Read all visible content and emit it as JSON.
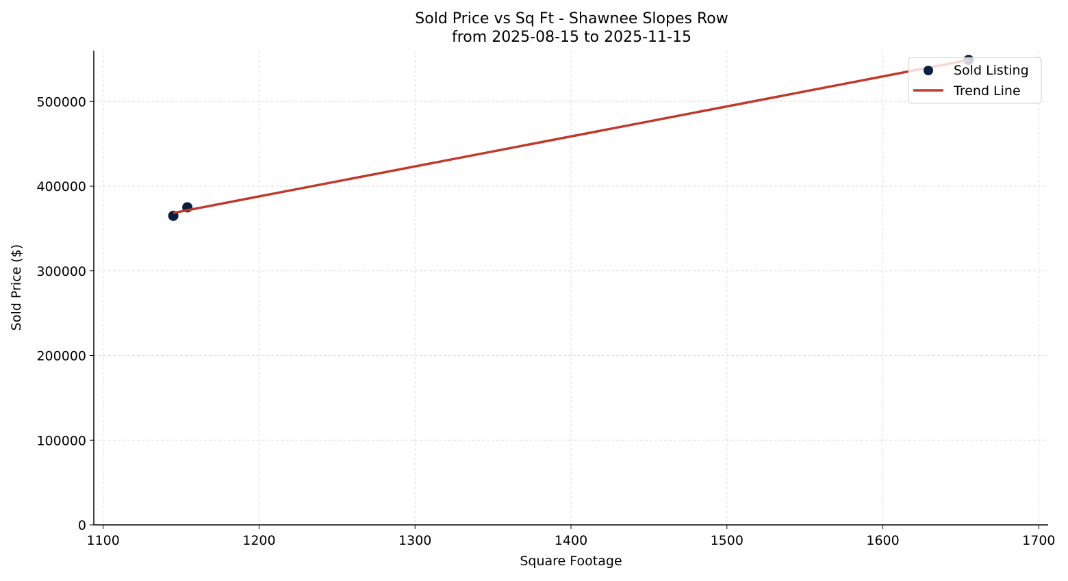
{
  "chart_data": {
    "type": "scatter",
    "title": "Sold Price vs Sq Ft - Shawnee Slopes Row",
    "subtitle": "from 2025-08-15 to 2025-11-15",
    "xlabel": "Square Footage",
    "ylabel": "Sold Price ($)",
    "xlim": [
      1094,
      1706
    ],
    "ylim": [
      0,
      560000
    ],
    "xticks": [
      1100,
      1200,
      1300,
      1400,
      1500,
      1600,
      1700
    ],
    "yticks": [
      0,
      100000,
      200000,
      300000,
      400000,
      500000
    ],
    "grid": true,
    "legend_placement": "upper-right",
    "series": [
      {
        "name": "Sold Listing",
        "kind": "scatter",
        "color": "#0b1f3f",
        "x": [
          1145,
          1154,
          1655
        ],
        "y": [
          365000,
          375000,
          549000
        ]
      },
      {
        "name": "Trend Line",
        "kind": "line",
        "color": "#c0392b",
        "fit": "linear"
      }
    ]
  }
}
